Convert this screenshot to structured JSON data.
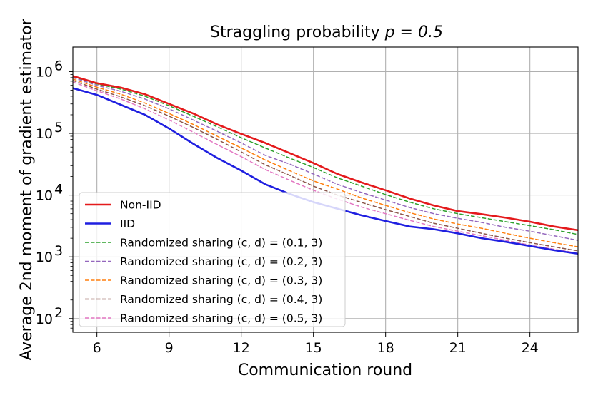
{
  "chart_data": {
    "type": "line",
    "title": "Straggling probability",
    "title_math": "p = 0.5",
    "xlabel": "Communication round",
    "ylabel": "Average 2nd moment of gradient estimator",
    "yscale": "log",
    "xlim": [
      5,
      26
    ],
    "ylim": [
      60,
      2500000
    ],
    "grid": true,
    "legend_position": "lower-left",
    "x_ticks": [
      6,
      9,
      12,
      15,
      18,
      21,
      24
    ],
    "y_ticks": [
      {
        "value": 100,
        "base": "10",
        "exp": "2"
      },
      {
        "value": 1000,
        "base": "10",
        "exp": "3"
      },
      {
        "value": 10000,
        "base": "10",
        "exp": "4"
      },
      {
        "value": 100000,
        "base": "10",
        "exp": "5"
      },
      {
        "value": 1000000,
        "base": "10",
        "exp": "6"
      }
    ],
    "x": [
      5,
      6,
      7,
      8,
      9,
      10,
      11,
      12,
      13,
      14,
      15,
      16,
      17,
      18,
      19,
      20,
      21,
      22,
      23,
      24,
      25,
      26
    ],
    "series": [
      {
        "name": "Non-IID",
        "label_prefix": "Non-IID",
        "label_math": "",
        "color": "#e41a1c",
        "style": "solid",
        "values": [
          850000,
          650000,
          550000,
          430000,
          300000,
          210000,
          140000,
          98000,
          70000,
          48000,
          33000,
          22000,
          16000,
          12000,
          8800,
          6800,
          5500,
          4900,
          4300,
          3700,
          3100,
          2700
        ]
      },
      {
        "name": "IID",
        "label_prefix": "IID",
        "label_math": "",
        "color": "#1f1fe0",
        "style": "solid",
        "values": [
          540000,
          420000,
          290000,
          200000,
          120000,
          68000,
          40000,
          25000,
          15000,
          10500,
          7700,
          6000,
          4700,
          3800,
          3100,
          2800,
          2400,
          2000,
          1750,
          1500,
          1280,
          1120
        ]
      },
      {
        "name": "Randomized sharing (c, d) = (0.1, 3)",
        "label_prefix": "Randomized sharing",
        "label_math": "(c, d) = (0.1, 3)",
        "color": "#2ca02c",
        "style": "dashed",
        "values": [
          830000,
          630000,
          520000,
          400000,
          280000,
          190000,
          128000,
          85000,
          58000,
          40000,
          28000,
          19000,
          14000,
          10200,
          7700,
          6000,
          5000,
          4300,
          3700,
          3200,
          2750,
          2300
        ]
      },
      {
        "name": "Randomized sharing (c, d) = (0.2, 3)",
        "label_prefix": "Randomized sharing",
        "label_math": "(c, d) = (0.2, 3)",
        "color": "#9467bd",
        "style": "dashed",
        "values": [
          800000,
          600000,
          480000,
          360000,
          250000,
          165000,
          108000,
          70000,
          44000,
          32000,
          22000,
          15000,
          11000,
          8300,
          6300,
          5000,
          4200,
          3600,
          3000,
          2600,
          2200,
          1850
        ]
      },
      {
        "name": "Randomized sharing (c, d) = (0.3, 3)",
        "label_prefix": "Randomized sharing",
        "label_math": "(c, d) = (0.3, 3)",
        "color": "#ff7f0e",
        "style": "dashed",
        "values": [
          760000,
          560000,
          430000,
          310000,
          210000,
          140000,
          90000,
          58000,
          37000,
          25000,
          17000,
          12500,
          9000,
          6800,
          5200,
          4100,
          3400,
          2900,
          2400,
          2000,
          1700,
          1450
        ]
      },
      {
        "name": "Randomized sharing (c, d) = (0.4, 3)",
        "label_prefix": "Randomized sharing",
        "label_math": "(c, d) = (0.4, 3)",
        "color": "#8c564b",
        "style": "dashed",
        "values": [
          720000,
          520000,
          390000,
          280000,
          190000,
          125000,
          80000,
          50000,
          31000,
          21000,
          14000,
          10000,
          7600,
          5800,
          4500,
          3500,
          2900,
          2400,
          2000,
          1700,
          1450,
          1250
        ]
      },
      {
        "name": "Randomized sharing (c, d) = (0.5, 3)",
        "label_prefix": "Randomized sharing",
        "label_math": "(c, d) = (0.5, 3)",
        "color": "#e377c2",
        "style": "dashed",
        "values": [
          680000,
          490000,
          360000,
          250000,
          165000,
          105000,
          66000,
          42000,
          26000,
          17500,
          12000,
          8600,
          6400,
          5000,
          3900,
          3100,
          2600,
          2200,
          1850,
          1550,
          1330,
          1150
        ]
      }
    ]
  }
}
